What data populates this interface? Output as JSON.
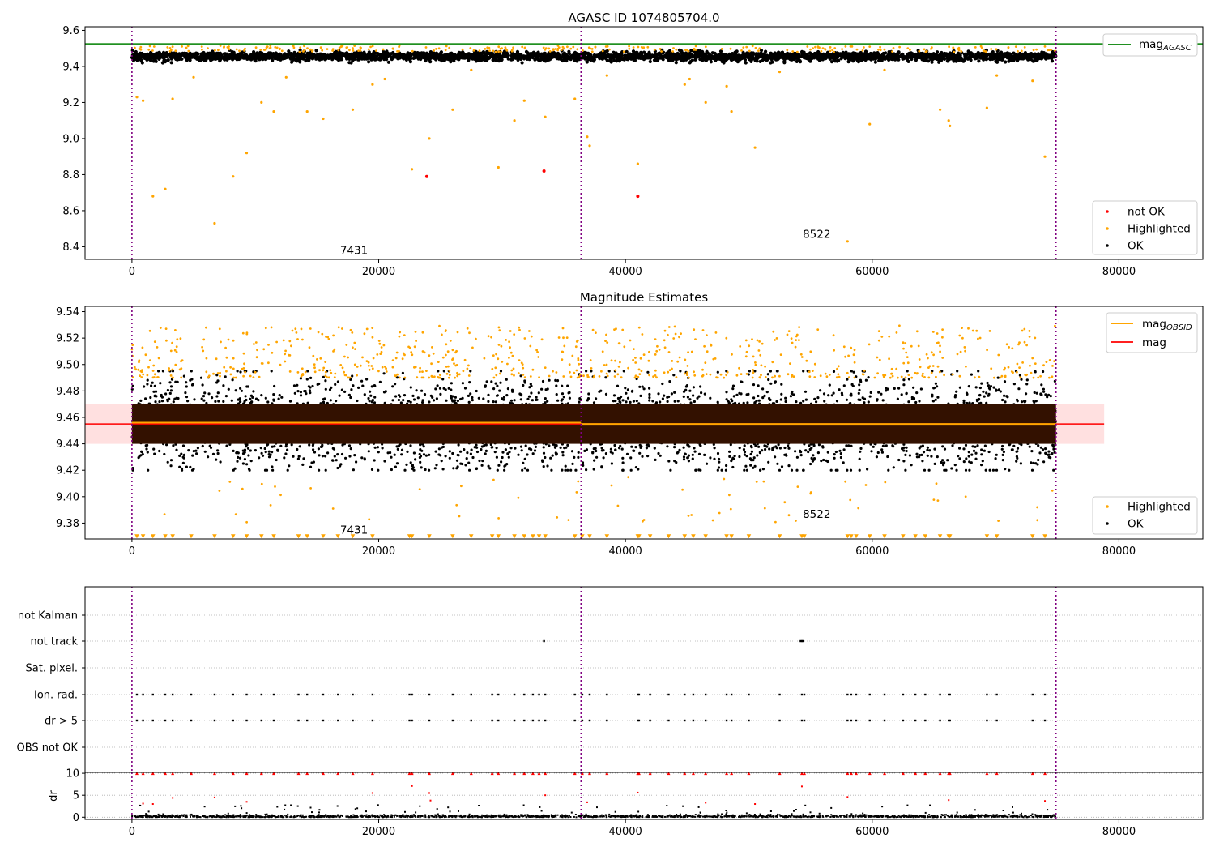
{
  "chart_data": [
    {
      "type": "scatter",
      "title": "AGASC ID 1074805704.0",
      "xlabel": "",
      "ylabel": "",
      "xlim": [
        -3800,
        86800
      ],
      "ylim": [
        8.33,
        9.62
      ],
      "x_ticks": [
        0,
        20000,
        40000,
        60000,
        80000
      ],
      "x_tick_labels": [
        "0",
        "20000",
        "40000",
        "60000",
        "80000"
      ],
      "y_ticks": [
        8.4,
        8.6,
        8.8,
        9.0,
        9.2,
        9.4,
        9.6
      ],
      "y_tick_labels": [
        "8.4",
        "8.6",
        "8.8",
        "9.0",
        "9.2",
        "9.4",
        "9.6"
      ],
      "obs_boundaries": [
        0,
        36400,
        74900
      ],
      "obs_labels": [
        {
          "text": "7431",
          "x": 18000,
          "y": 8.36
        },
        {
          "text": "8522",
          "x": 55500,
          "y": 8.45
        }
      ],
      "reference_line": {
        "name": "mag_AGASC",
        "value": 9.525,
        "x_range": [
          -3800,
          86800
        ],
        "color": "#008000"
      },
      "ok_band": {
        "x_range": [
          0,
          74900
        ],
        "y_range": [
          9.42,
          9.49
        ],
        "color": "#000000"
      },
      "series": [
        {
          "name": "not OK",
          "color": "#ff0000",
          "points": [
            [
              23900,
              8.79
            ],
            [
              33400,
              8.82
            ],
            [
              41000,
              8.68
            ]
          ]
        },
        {
          "name": "Highlighted",
          "color": "#ffa500",
          "points": [
            [
              400,
              9.23
            ],
            [
              900,
              9.21
            ],
            [
              1700,
              8.68
            ],
            [
              2700,
              8.72
            ],
            [
              3300,
              9.22
            ],
            [
              6700,
              8.53
            ],
            [
              8200,
              8.79
            ],
            [
              9300,
              8.92
            ],
            [
              10500,
              9.2
            ],
            [
              11500,
              9.15
            ],
            [
              14200,
              9.15
            ],
            [
              15500,
              9.11
            ],
            [
              17900,
              9.16
            ],
            [
              19500,
              9.3
            ],
            [
              22700,
              8.83
            ],
            [
              24100,
              9.0
            ],
            [
              26000,
              9.16
            ],
            [
              29700,
              8.84
            ],
            [
              31000,
              9.1
            ],
            [
              31800,
              9.21
            ],
            [
              33500,
              9.12
            ],
            [
              35900,
              9.22
            ],
            [
              36900,
              9.01
            ],
            [
              37100,
              8.96
            ],
            [
              41000,
              8.86
            ],
            [
              44800,
              9.3
            ],
            [
              46500,
              9.2
            ],
            [
              48200,
              9.29
            ],
            [
              48600,
              9.15
            ],
            [
              50500,
              8.95
            ],
            [
              58000,
              8.43
            ],
            [
              59800,
              9.08
            ],
            [
              66200,
              9.1
            ],
            [
              66300,
              9.07
            ],
            [
              69300,
              9.17
            ],
            [
              74000,
              8.9
            ],
            [
              5000,
              9.34
            ],
            [
              12500,
              9.34
            ],
            [
              20500,
              9.33
            ],
            [
              27500,
              9.38
            ],
            [
              38500,
              9.35
            ],
            [
              45200,
              9.33
            ],
            [
              52500,
              9.37
            ],
            [
              61000,
              9.38
            ],
            [
              65500,
              9.16
            ],
            [
              70100,
              9.35
            ],
            [
              73000,
              9.32
            ]
          ]
        },
        {
          "name": "OK",
          "color": "#000000",
          "points": []
        }
      ],
      "legend": {
        "placement": "lower-right",
        "entries": [
          "not OK",
          "Highlighted",
          "OK"
        ]
      },
      "legend2": {
        "placement": "upper-right",
        "entries": [
          "mag_AGASC"
        ]
      }
    },
    {
      "type": "scatter",
      "title": "Magnitude Estimates",
      "xlabel": "",
      "ylabel": "",
      "xlim": [
        -3800,
        86800
      ],
      "ylim": [
        9.368,
        9.544
      ],
      "x_ticks": [
        0,
        20000,
        40000,
        60000,
        80000
      ],
      "x_tick_labels": [
        "0",
        "20000",
        "40000",
        "60000",
        "80000"
      ],
      "y_ticks": [
        9.38,
        9.4,
        9.42,
        9.44,
        9.46,
        9.48,
        9.5,
        9.52,
        9.54
      ],
      "y_tick_labels": [
        "9.38",
        "9.40",
        "9.42",
        "9.44",
        "9.46",
        "9.48",
        "9.50",
        "9.52",
        "9.54"
      ],
      "obs_boundaries": [
        0,
        36400,
        74900
      ],
      "obs_labels": [
        {
          "text": "7431",
          "x": 18000,
          "y": 9.372
        },
        {
          "text": "8522",
          "x": 55500,
          "y": 9.384
        }
      ],
      "mag_band": {
        "x_range": [
          0,
          78800
        ],
        "y_range": [
          9.44,
          9.47
        ],
        "color": "#ffcccc"
      },
      "mag_line": {
        "name": "mag",
        "value": 9.455,
        "x_range": [
          0,
          78800
        ],
        "color": "#ff0000"
      },
      "obsid_lines": [
        {
          "name": "mag_OBSID",
          "x_range": [
            0,
            36400
          ],
          "value": 9.456,
          "color": "#ffa500"
        },
        {
          "name": "mag_OBSID",
          "x_range": [
            36400,
            74900
          ],
          "value": 9.455,
          "color": "#ffa500"
        }
      ],
      "ok_band": {
        "x_range": [
          0,
          74900
        ],
        "y_range": [
          9.44,
          9.47
        ],
        "color": "#331100"
      },
      "ok_spread": {
        "y_range": [
          9.42,
          9.495
        ]
      },
      "highlighted_spread": {
        "y_range": [
          9.49,
          9.53
        ]
      },
      "floor_markers_y": 9.37,
      "legend": {
        "placement": "lower-right",
        "entries": [
          "Highlighted",
          "OK"
        ]
      },
      "legend2": {
        "placement": "upper-right",
        "entries": [
          "mag_OBSID",
          "mag"
        ]
      }
    },
    {
      "type": "scatter",
      "title": "",
      "xlim": [
        -3800,
        86800
      ],
      "categories": [
        "not Kalman",
        "not track",
        "Sat. pixel.",
        "Ion. rad.",
        "dr > 5",
        "OBS not OK"
      ],
      "x_ticks": [
        0,
        20000,
        40000,
        60000,
        80000
      ],
      "x_tick_labels": [
        "0",
        "20000",
        "40000",
        "60000",
        "80000"
      ],
      "obs_boundaries": [
        0,
        36400,
        74900
      ],
      "flag_points": {
        "not track": [
          33400,
          54200,
          54300,
          54400
        ],
        "Ion. rad.": [
          400,
          900,
          1700,
          2700,
          3300,
          4800,
          6700,
          8200,
          9300,
          10500,
          11500,
          13500,
          14200,
          15500,
          16700,
          17900,
          19500,
          22500,
          22700,
          24100,
          26000,
          27500,
          29200,
          29700,
          31000,
          31800,
          32500,
          33000,
          33500,
          35900,
          36500,
          37100,
          38500,
          41000,
          41100,
          42000,
          43500,
          44800,
          45500,
          46500,
          48200,
          48600,
          50000,
          52500,
          54300,
          54500,
          58000,
          58300,
          58700,
          59800,
          61000,
          62500,
          63500,
          64300,
          65500,
          66200,
          66300,
          69300,
          70100,
          73000,
          74000
        ],
        "dr > 5": [
          400,
          900,
          1700,
          2700,
          3300,
          4800,
          6700,
          8200,
          9300,
          10500,
          11500,
          13500,
          14200,
          15500,
          16700,
          17900,
          19500,
          22500,
          22700,
          24100,
          26000,
          27500,
          29200,
          29700,
          31000,
          31800,
          32500,
          33000,
          33500,
          35900,
          36500,
          37100,
          38500,
          41000,
          41100,
          42000,
          43500,
          44800,
          45500,
          46500,
          48200,
          48600,
          50000,
          52500,
          54300,
          54500,
          58000,
          58300,
          58700,
          59800,
          61000,
          62500,
          63500,
          64300,
          65500,
          66200,
          66300,
          69300,
          70100,
          73000,
          74000
        ]
      }
    },
    {
      "type": "scatter",
      "title": "",
      "xlabel": "",
      "ylabel": "dr",
      "xlim": [
        -3800,
        86800
      ],
      "ylim": [
        -0.5,
        10.2
      ],
      "y_ticks": [
        0,
        5,
        10
      ],
      "y_tick_labels": [
        "0",
        "5",
        "10"
      ],
      "x_ticks": [
        0,
        20000,
        40000,
        60000,
        80000
      ],
      "x_tick_labels": [
        "0",
        "20000",
        "40000",
        "60000",
        "80000"
      ],
      "obs_boundaries": [
        0,
        36400,
        74900
      ],
      "high_dr_points": [
        [
          900,
          3.1
        ],
        [
          1700,
          3.0
        ],
        [
          3300,
          4.4
        ],
        [
          6700,
          4.5
        ],
        [
          9300,
          3.5
        ],
        [
          19500,
          5.5
        ],
        [
          22700,
          7.1
        ],
        [
          24100,
          5.5
        ],
        [
          24200,
          3.8
        ],
        [
          33500,
          5.0
        ],
        [
          36900,
          3.4
        ],
        [
          41000,
          5.6
        ],
        [
          46500,
          3.3
        ],
        [
          50500,
          3.0
        ],
        [
          54300,
          7.0
        ],
        [
          58000,
          4.6
        ],
        [
          66200,
          3.9
        ],
        [
          74000,
          3.7
        ]
      ],
      "saturated_dr_points": [
        400,
        900,
        1700,
        2700,
        3300,
        4800,
        6700,
        8200,
        9300,
        10500,
        11500,
        13500,
        14200,
        15500,
        16700,
        17900,
        19500,
        22500,
        22700,
        24100,
        26000,
        27500,
        29200,
        29700,
        31000,
        31800,
        32500,
        33000,
        33500,
        35900,
        36500,
        37100,
        38500,
        41000,
        41100,
        42000,
        43500,
        44800,
        45500,
        46500,
        48200,
        48600,
        50000,
        52500,
        54300,
        54500,
        58000,
        58300,
        58700,
        59800,
        61000,
        62500,
        63500,
        64300,
        65500,
        66200,
        66300,
        69300,
        70100,
        73000,
        74000
      ]
    }
  ]
}
